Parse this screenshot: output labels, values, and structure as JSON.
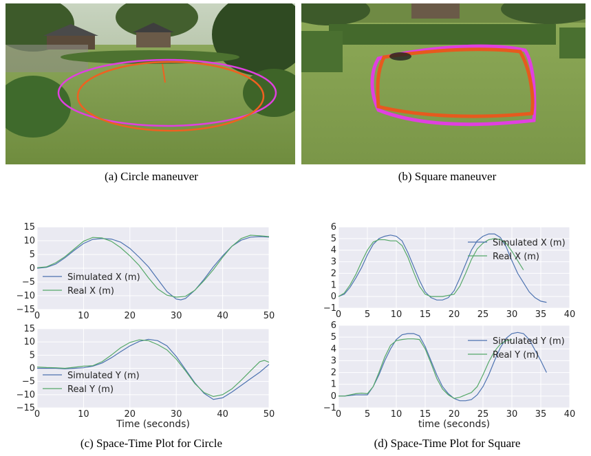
{
  "captions": {
    "a": "(a)  Circle maneuver",
    "b": "(b)  Square maneuver",
    "c": "(c)  Space-Time Plot for Circle",
    "d": "(d)  Space-Time Plot for Square"
  },
  "colors": {
    "simulated": "#4c72b0",
    "real": "#55a868",
    "panel_bg": "#eaeaf2",
    "sim_track": "#e040e0",
    "real_track": "#f06020"
  },
  "photos": [
    {
      "id": "a",
      "description": "Drone flight path over lawn",
      "grass": "#7d9a4a",
      "trees": "#3d5a2a"
    },
    {
      "id": "b",
      "description": "Drone flight path over lawn",
      "grass": "#8aa354",
      "trees": "#3a5628"
    }
  ],
  "chart_data": [
    {
      "type": "line",
      "panel": "c-top",
      "xlim": [
        0,
        50
      ],
      "ylim": [
        -15,
        15
      ],
      "xticks": [
        0,
        10,
        20,
        30,
        40,
        50
      ],
      "yticks": [
        -15,
        -10,
        -5,
        0,
        5,
        10,
        15
      ],
      "yticklabels": [
        "−15",
        "−10",
        "−5",
        "0",
        "5",
        "10",
        "15"
      ],
      "xlabel": "",
      "series": [
        {
          "name": "Simulated X (m)",
          "x": [
            0,
            2,
            4,
            6,
            8,
            10,
            12,
            14,
            16,
            18,
            20,
            22,
            24,
            26,
            28,
            30,
            31,
            32,
            34,
            36,
            38,
            40,
            42,
            44,
            46,
            48,
            50
          ],
          "y": [
            0,
            0.3,
            1.5,
            3.8,
            6.5,
            9,
            10.5,
            10.8,
            10.6,
            9.5,
            7.2,
            4,
            0.5,
            -4,
            -8.5,
            -11.2,
            -11.5,
            -11,
            -8,
            -4,
            0.5,
            4.5,
            8,
            10.2,
            11.3,
            11.5,
            11.3
          ]
        },
        {
          "name": "Real X (m)",
          "x": [
            0,
            2,
            4,
            6,
            8,
            10,
            12,
            14,
            16,
            18,
            20,
            22,
            24,
            26,
            28,
            30,
            32,
            34,
            36,
            38,
            40,
            42,
            44,
            46,
            48,
            50
          ],
          "y": [
            0.2,
            0.5,
            2,
            4.2,
            7,
            9.8,
            11.2,
            11,
            9.8,
            7.5,
            4.5,
            1,
            -3.5,
            -7.5,
            -9.8,
            -10.5,
            -10.2,
            -8,
            -4.5,
            -0.5,
            4,
            8,
            10.8,
            12,
            11.8,
            11.5
          ]
        }
      ],
      "legend": "lower-left"
    },
    {
      "type": "line",
      "panel": "c-bottom",
      "xlim": [
        0,
        50
      ],
      "ylim": [
        -15,
        15
      ],
      "xticks": [
        0,
        10,
        20,
        30,
        40,
        50
      ],
      "yticks": [
        -15,
        -10,
        -5,
        0,
        5,
        10,
        15
      ],
      "yticklabels": [
        "−15",
        "−10",
        "−5",
        "0",
        "5",
        "10",
        "15"
      ],
      "xlabel": "Time (seconds)",
      "series": [
        {
          "name": "Simulated Y (m)",
          "x": [
            0,
            2,
            4,
            6,
            8,
            10,
            12,
            14,
            16,
            18,
            20,
            22,
            24,
            26,
            28,
            30,
            32,
            34,
            36,
            38,
            40,
            42,
            44,
            46,
            48,
            50
          ],
          "y": [
            0,
            0,
            0,
            -0.2,
            0,
            0.2,
            0.8,
            2,
            4,
            6.3,
            8.5,
            10.2,
            11,
            10.5,
            8.5,
            4.5,
            -0.5,
            -5.5,
            -9.5,
            -11.8,
            -11.2,
            -9,
            -6.5,
            -4,
            -1.5,
            1.5
          ]
        },
        {
          "name": "Real Y (m)",
          "x": [
            0,
            2,
            4,
            6,
            8,
            10,
            12,
            14,
            16,
            18,
            20,
            22,
            24,
            26,
            28,
            30,
            32,
            34,
            36,
            38,
            40,
            42,
            44,
            46,
            48,
            49,
            50
          ],
          "y": [
            0.5,
            0.3,
            0.2,
            0,
            0.4,
            0.8,
            1,
            2.5,
            5,
            7.8,
            9.8,
            10.8,
            10.5,
            9,
            7,
            3.5,
            -1,
            -5.8,
            -9.2,
            -10.7,
            -10,
            -7.8,
            -4.5,
            -1,
            2.5,
            3,
            2.3
          ]
        }
      ],
      "legend": "lower-left"
    },
    {
      "type": "line",
      "panel": "d-top",
      "xlim": [
        0,
        40
      ],
      "ylim": [
        -1,
        6
      ],
      "xticks": [
        0,
        5,
        10,
        15,
        20,
        25,
        30,
        35,
        40
      ],
      "yticks": [
        -1,
        0,
        1,
        2,
        3,
        4,
        5,
        6
      ],
      "yticklabels": [
        "−1",
        "0",
        "1",
        "2",
        "3",
        "4",
        "5",
        "6"
      ],
      "xlabel": "",
      "series": [
        {
          "name": "Simulated X (m)",
          "x": [
            0,
            1,
            2,
            3,
            4,
            5,
            6,
            7,
            8,
            9,
            10,
            11,
            12,
            13,
            14,
            15,
            16,
            17,
            18,
            19,
            20,
            21,
            22,
            23,
            24,
            25,
            26,
            27,
            28,
            29,
            30,
            31,
            32,
            33,
            34,
            35,
            36
          ],
          "y": [
            0,
            0.2,
            0.8,
            1.6,
            2.5,
            3.6,
            4.5,
            5,
            5.2,
            5.3,
            5.2,
            4.8,
            3.8,
            2.6,
            1.4,
            0.4,
            -0.1,
            -0.3,
            -0.3,
            -0.1,
            0.5,
            1.6,
            2.8,
            4,
            4.8,
            5.2,
            5.4,
            5.4,
            5.1,
            4.3,
            3.1,
            2,
            1.2,
            0.4,
            -0.1,
            -0.4,
            -0.5
          ]
        },
        {
          "name": "Real X (m)",
          "x": [
            0,
            1,
            2,
            3,
            4,
            5,
            6,
            7,
            8,
            9,
            10,
            11,
            12,
            13,
            14,
            15,
            16,
            17,
            18,
            19,
            20,
            21,
            22,
            23,
            24,
            25,
            26,
            27,
            28,
            29,
            30,
            31,
            32
          ],
          "y": [
            0,
            0.3,
            1,
            1.9,
            3,
            4,
            4.7,
            4.9,
            4.9,
            4.8,
            4.8,
            4.4,
            3.4,
            2.1,
            0.9,
            0.2,
            0,
            0,
            0,
            0.1,
            0.2,
            0.9,
            2,
            3.2,
            4.1,
            4.6,
            4.9,
            5,
            4.9,
            4.6,
            3.9,
            3.1,
            2.3
          ]
        }
      ],
      "legend": "upper-right"
    },
    {
      "type": "line",
      "panel": "d-bottom",
      "xlim": [
        0,
        40
      ],
      "ylim": [
        -1,
        6
      ],
      "xticks": [
        0,
        5,
        10,
        15,
        20,
        25,
        30,
        35,
        40
      ],
      "yticks": [
        -1,
        0,
        1,
        2,
        3,
        4,
        5,
        6
      ],
      "yticklabels": [
        "−1",
        "0",
        "1",
        "2",
        "3",
        "4",
        "5",
        "6"
      ],
      "xlabel": "time (seconds)",
      "series": [
        {
          "name": "Simulated Y (m)",
          "x": [
            0,
            1,
            2,
            3,
            4,
            5,
            6,
            7,
            8,
            9,
            10,
            11,
            12,
            13,
            14,
            15,
            16,
            17,
            18,
            19,
            20,
            21,
            22,
            23,
            24,
            25,
            26,
            27,
            28,
            29,
            30,
            31,
            32,
            33,
            34,
            35,
            36
          ],
          "y": [
            0,
            0,
            0.05,
            0.1,
            0.1,
            0.1,
            0.8,
            1.8,
            3,
            4,
            4.8,
            5.2,
            5.3,
            5.3,
            5.1,
            4.2,
            3,
            1.8,
            0.8,
            0.2,
            -0.2,
            -0.4,
            -0.4,
            -0.3,
            0.1,
            0.8,
            1.8,
            3,
            4.1,
            4.9,
            5.3,
            5.4,
            5.3,
            4.8,
            3.9,
            3,
            2
          ]
        },
        {
          "name": "Real Y (m)",
          "x": [
            0,
            1,
            2,
            3,
            4,
            5,
            6,
            7,
            8,
            9,
            10,
            11,
            12,
            13,
            14,
            15,
            16,
            17,
            18,
            19,
            20,
            21,
            22,
            23,
            24,
            25,
            26,
            27,
            28,
            29,
            30
          ],
          "y": [
            0,
            0,
            0.1,
            0.2,
            0.25,
            0.2,
            0.8,
            2,
            3.3,
            4.3,
            4.7,
            4.8,
            4.85,
            4.85,
            4.8,
            4,
            2.8,
            1.5,
            0.6,
            0.1,
            -0.2,
            -0.1,
            0.1,
            0.3,
            0.8,
            1.8,
            2.9,
            3.8,
            4.4,
            4.7,
            4.8
          ]
        }
      ],
      "legend": "upper-right"
    }
  ]
}
